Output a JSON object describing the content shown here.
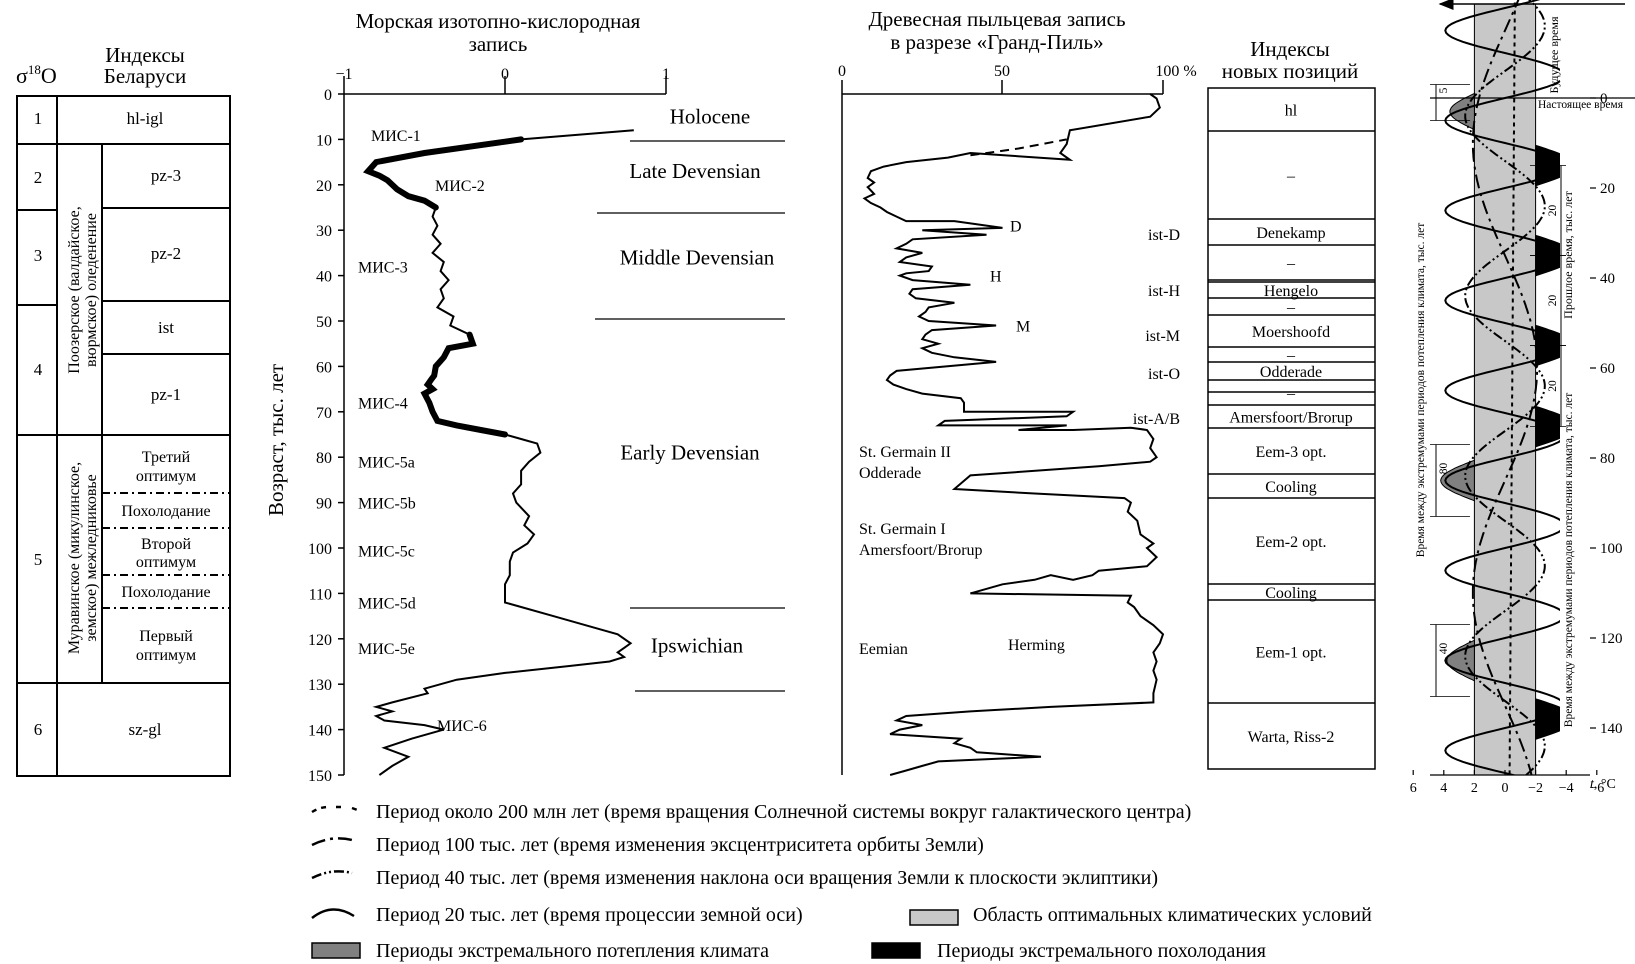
{
  "sigma_label": "σ",
  "sigma_sup": "18",
  "sigma_o": "O",
  "belarus": {
    "title_line1": "Индексы",
    "title_line2": "Беларуси",
    "numbers": [
      "1",
      "2",
      "3",
      "4",
      "5",
      "6"
    ],
    "codes": [
      "hl-igl",
      "pz-3",
      "pz-2",
      "ist",
      "pz-1",
      "sz-gl"
    ],
    "poozerie_line1": "Поозерское (валдайское,",
    "poozerie_line2": "вюрмское) оледенение",
    "muravin_line1": "Муравинское (микулинское,",
    "muravin_line2": "земское) межледниковье",
    "sub_third_1": "Третий",
    "sub_third_2": "оптимум",
    "sub_cool_1": "Похолодание",
    "sub_second_1": "Второй",
    "sub_second_2": "оптимум",
    "sub_cool_2": "Похолодание",
    "sub_first_1": "Первый",
    "sub_first_2": "оптимум"
  },
  "isotope": {
    "title_line1": "Морская изотопно-кислородная",
    "title_line2": "запись",
    "x_ticks": [
      "−1",
      "0",
      "1"
    ],
    "y_ticks": [
      "0",
      "10",
      "20",
      "30",
      "40",
      "50",
      "60",
      "70",
      "80",
      "90",
      "100",
      "110",
      "120",
      "130",
      "140",
      "150"
    ],
    "y_label": "Возраст, тыс. лет",
    "stage_labels": [
      {
        "text": "МИС-1",
        "age": 9
      },
      {
        "text": "МИС-2",
        "age": 20
      },
      {
        "text": "МИС-3",
        "age": 38
      },
      {
        "text": "МИС-4",
        "age": 68
      },
      {
        "text": "МИС-5a",
        "age": 81
      },
      {
        "text": "МИС-5b",
        "age": 90
      },
      {
        "text": "МИС-5c",
        "age": 100.5
      },
      {
        "text": "МИС-5d",
        "age": 112
      },
      {
        "text": "МИС-5e",
        "age": 122
      },
      {
        "text": "МИС-6",
        "age": 139
      }
    ],
    "periods": [
      {
        "text": "Holocene",
        "age": 5
      },
      {
        "text": "Late Devensian",
        "age": 17
      },
      {
        "text": "Middle Devensian",
        "age": 36
      },
      {
        "text": "Early Devensian",
        "age": 79
      },
      {
        "text": "Ipswichian",
        "age": 121.5
      }
    ],
    "curve": [
      [
        0.8,
        8
      ],
      [
        0.1,
        10
      ],
      [
        -0.5,
        13
      ],
      [
        -0.8,
        15
      ],
      [
        -0.85,
        17
      ],
      [
        -0.78,
        18
      ],
      [
        -0.73,
        19
      ],
      [
        -0.7,
        20
      ],
      [
        -0.67,
        21
      ],
      [
        -0.6,
        22.5
      ],
      [
        -0.5,
        23.5
      ],
      [
        -0.43,
        25
      ],
      [
        -0.45,
        27
      ],
      [
        -0.42,
        29
      ],
      [
        -0.45,
        31
      ],
      [
        -0.4,
        33
      ],
      [
        -0.45,
        35
      ],
      [
        -0.38,
        37
      ],
      [
        -0.4,
        39
      ],
      [
        -0.35,
        41
      ],
      [
        -0.4,
        43
      ],
      [
        -0.38,
        45
      ],
      [
        -0.42,
        47
      ],
      [
        -0.32,
        49
      ],
      [
        -0.34,
        51
      ],
      [
        -0.22,
        53
      ],
      [
        -0.2,
        55
      ],
      [
        -0.35,
        56
      ],
      [
        -0.38,
        58
      ],
      [
        -0.43,
        60
      ],
      [
        -0.44,
        62
      ],
      [
        -0.46,
        63
      ],
      [
        -0.48,
        64
      ],
      [
        -0.45,
        65
      ],
      [
        -0.5,
        66
      ],
      [
        -0.47,
        68
      ],
      [
        -0.45,
        70
      ],
      [
        -0.42,
        72
      ],
      [
        -0.3,
        73
      ],
      [
        -0.15,
        74
      ],
      [
        0,
        75
      ],
      [
        0.1,
        76
      ],
      [
        0.2,
        77
      ],
      [
        0.22,
        79
      ],
      [
        0.15,
        81
      ],
      [
        0.1,
        83
      ],
      [
        0.1,
        86
      ],
      [
        0.05,
        88
      ],
      [
        0.07,
        90
      ],
      [
        0.15,
        93
      ],
      [
        0.12,
        95
      ],
      [
        0.18,
        97
      ],
      [
        0.14,
        99
      ],
      [
        0.05,
        101
      ],
      [
        0.03,
        103
      ],
      [
        0.03,
        106
      ],
      [
        0,
        108
      ],
      [
        0,
        110
      ],
      [
        0,
        112
      ],
      [
        0.1,
        113
      ],
      [
        0.3,
        115
      ],
      [
        0.5,
        117
      ],
      [
        0.7,
        119
      ],
      [
        0.78,
        121
      ],
      [
        0.74,
        122
      ],
      [
        0.7,
        123
      ],
      [
        0.74,
        124
      ],
      [
        0.65,
        125
      ],
      [
        0.4,
        126
      ],
      [
        0,
        127.5
      ],
      [
        -0.3,
        129
      ],
      [
        -0.5,
        131
      ],
      [
        -0.48,
        132
      ],
      [
        -0.7,
        134
      ],
      [
        -0.8,
        135
      ],
      [
        -0.7,
        136
      ],
      [
        -0.8,
        137
      ],
      [
        -0.75,
        138
      ],
      [
        -0.5,
        139
      ],
      [
        -0.38,
        140
      ],
      [
        -0.58,
        142
      ],
      [
        -0.75,
        144
      ],
      [
        -0.6,
        146
      ],
      [
        -0.7,
        148
      ],
      [
        -0.78,
        150
      ]
    ]
  },
  "pollen": {
    "title_line1": "Древесная пыльцевая запись",
    "title_line2": "в разрезе «Гранд-Пиль»",
    "x_ticks": [
      "0",
      "50",
      "100 %"
    ],
    "peak_labels": [
      {
        "text": "D",
        "age": 29
      },
      {
        "text": "H",
        "age": 40
      },
      {
        "text": "M",
        "age": 51
      }
    ],
    "ist_labels": [
      "ist-D",
      "ist-H",
      "ist-M",
      "ist-O",
      "ist-A/B"
    ],
    "texts": {
      "sg2_1": "St. Germain II",
      "sg2_2": "Odderade",
      "sg1_1": "St. Germain I",
      "sg1_2": "Amersfoort/Brorup",
      "eemian": "Eemian",
      "herming": "Herming"
    },
    "curve": [
      [
        96,
        0
      ],
      [
        98,
        1
      ],
      [
        99,
        3
      ],
      [
        96,
        5
      ],
      [
        71,
        8
      ],
      [
        70,
        11
      ],
      [
        68,
        13
      ],
      [
        71,
        14.5
      ],
      [
        40,
        13
      ],
      [
        33,
        14
      ],
      [
        20,
        15
      ],
      [
        13,
        16
      ],
      [
        9,
        17
      ],
      [
        8,
        18.5
      ],
      [
        10,
        19.5
      ],
      [
        8,
        20.5
      ],
      [
        10,
        22
      ],
      [
        7,
        23
      ],
      [
        9,
        24
      ],
      [
        12,
        25
      ],
      [
        14,
        26
      ],
      [
        17,
        27
      ],
      [
        20,
        28
      ],
      [
        35,
        28
      ],
      [
        50,
        29.5
      ],
      [
        25,
        30
      ],
      [
        45,
        31
      ],
      [
        22,
        32
      ],
      [
        20,
        33
      ],
      [
        17,
        34
      ],
      [
        25,
        35
      ],
      [
        20,
        36
      ],
      [
        18,
        37
      ],
      [
        28,
        38
      ],
      [
        27,
        39
      ],
      [
        20,
        39.5
      ],
      [
        18,
        40
      ],
      [
        22,
        41
      ],
      [
        40,
        42
      ],
      [
        22,
        43
      ],
      [
        21,
        44
      ],
      [
        23,
        45
      ],
      [
        35,
        46
      ],
      [
        27,
        47
      ],
      [
        26,
        48
      ],
      [
        24,
        49
      ],
      [
        27,
        50
      ],
      [
        48,
        51
      ],
      [
        28,
        52
      ],
      [
        26,
        53
      ],
      [
        25,
        54
      ],
      [
        30,
        55
      ],
      [
        25,
        56
      ],
      [
        28,
        57
      ],
      [
        35,
        58
      ],
      [
        48,
        59
      ],
      [
        17,
        61
      ],
      [
        15,
        62
      ],
      [
        14,
        63
      ],
      [
        16,
        64
      ],
      [
        20,
        65
      ],
      [
        25,
        66
      ],
      [
        37,
        67
      ],
      [
        38,
        68
      ],
      [
        38,
        69
      ],
      [
        38,
        70
      ],
      [
        72,
        70
      ],
      [
        70,
        71
      ],
      [
        32,
        72
      ],
      [
        30,
        73
      ],
      [
        70,
        73
      ],
      [
        55,
        74
      ],
      [
        72,
        74
      ],
      [
        90,
        73.5
      ],
      [
        95,
        74
      ],
      [
        97,
        76
      ],
      [
        96,
        78
      ],
      [
        98,
        80
      ],
      [
        96,
        81
      ],
      [
        80,
        82
      ],
      [
        40,
        84
      ],
      [
        35,
        87
      ],
      [
        60,
        88
      ],
      [
        88,
        89
      ],
      [
        90,
        90
      ],
      [
        89,
        92
      ],
      [
        92,
        94
      ],
      [
        93,
        97
      ],
      [
        97,
        99
      ],
      [
        95,
        100
      ],
      [
        98,
        102
      ],
      [
        95,
        104
      ],
      [
        80,
        105
      ],
      [
        78,
        106
      ],
      [
        72,
        107
      ],
      [
        65,
        106
      ],
      [
        60,
        107
      ],
      [
        50,
        108
      ],
      [
        40,
        110
      ],
      [
        90,
        110.5
      ],
      [
        89,
        112
      ],
      [
        91,
        113
      ],
      [
        93,
        115
      ],
      [
        97,
        117
      ],
      [
        100,
        119
      ],
      [
        99,
        121
      ],
      [
        97,
        123
      ],
      [
        98,
        125
      ],
      [
        97,
        127
      ],
      [
        98,
        129
      ],
      [
        97,
        132
      ],
      [
        97,
        134
      ],
      [
        65,
        135
      ],
      [
        40,
        136
      ],
      [
        20,
        137
      ],
      [
        17,
        138
      ],
      [
        25,
        139
      ],
      [
        18,
        140
      ],
      [
        15,
        141
      ],
      [
        37,
        142
      ],
      [
        35,
        143
      ],
      [
        40,
        144
      ],
      [
        42,
        145
      ],
      [
        62,
        146
      ],
      [
        30,
        147
      ],
      [
        25,
        148
      ],
      [
        20,
        149
      ],
      [
        15,
        150
      ]
    ],
    "dash_curve": [
      [
        40,
        13.5
      ],
      [
        55,
        12
      ],
      [
        70,
        10
      ]
    ]
  },
  "new_positions": {
    "title_line1": "Индексы",
    "title_line2": "новых позиций",
    "labels": [
      "hl",
      "–",
      "Denekamp",
      "–",
      "Hengelo",
      "–",
      "Moershoofd",
      "–",
      "Odderade",
      "–",
      "Amersfoort/Brorup",
      "Eem-3 opt.",
      "Cooling",
      "Eem-2 opt.",
      "Cooling",
      "Eem-1 opt.",
      "Warta, Riss-2"
    ]
  },
  "right_panel": {
    "future_label": "Будущее время",
    "present_label": "Настоящее время",
    "past_label": "Прошлое время, тыс. лет",
    "interval_label_left": "Время между экстремумами периодов потепления климата, тыс. лет",
    "interval_label_right": "Время между экстремумами периодов потепления климата, тыс. лет",
    "interval_numbers": [
      "5",
      "80",
      "40",
      "20",
      "20",
      "20"
    ],
    "age_ticks": [
      "0",
      "20",
      "40",
      "60",
      "80",
      "100",
      "120",
      "140"
    ],
    "t_ticks": [
      "6",
      "4",
      "2",
      "0",
      "−2",
      "−4",
      "−6"
    ],
    "t_unit_italic": "t",
    "t_unit": ", °C",
    "colors": {
      "optimum": "#c8c8c8",
      "warm": "#808080",
      "cold": "#000000"
    }
  },
  "legend": [
    "Период около 200 млн лет (время вращения Солнечной системы вокруг галактического центра)",
    "Период 100 тыс. лет (время изменения эксцентриситета орбиты Земли)",
    "Период 40 тыс. лет (время изменения наклона оси вращения Земли к плоскости эклиптики)",
    "Период 20 тыс. лет (время процессии земной оси)",
    "Область оптимальных климатических условий",
    "Периоды экстремального потепления климата",
    "Периоды экстремального похолодания"
  ]
}
